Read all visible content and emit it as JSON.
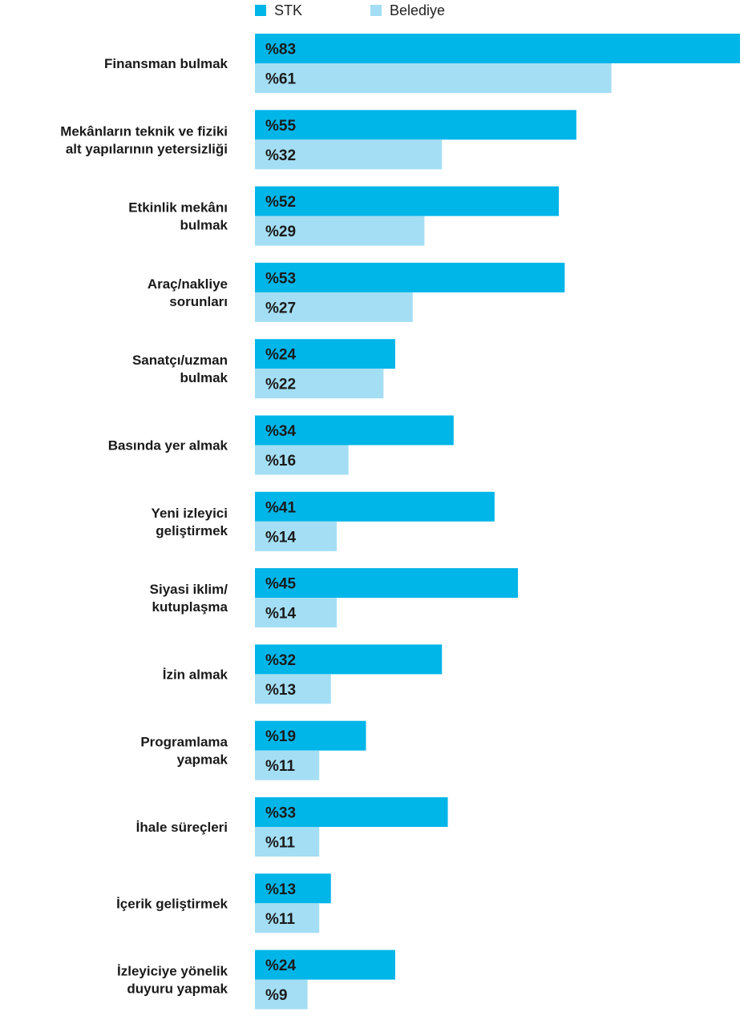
{
  "chart_data": {
    "type": "bar",
    "orientation": "horizontal",
    "categories": [
      [
        "Finansman bulmak"
      ],
      [
        "Mekânların teknik ve fiziki",
        "alt yapılarının yetersizliği"
      ],
      [
        "Etkinlik mekânı",
        "bulmak"
      ],
      [
        "Araç/nakliye",
        "sorunları"
      ],
      [
        "Sanatçı/uzman",
        "bulmak"
      ],
      [
        "Basında yer almak"
      ],
      [
        "Yeni izleyici",
        "geliştirmek"
      ],
      [
        "Siyasi iklim/",
        "kutuplaşma"
      ],
      [
        "İzin almak"
      ],
      [
        "Programlama",
        "yapmak"
      ],
      [
        "İhale süreçleri"
      ],
      [
        "İçerik geliştirmek"
      ],
      [
        "İzleyiciye yönelik",
        "duyuru yapmak"
      ]
    ],
    "series": [
      {
        "name": "STK",
        "color": "#00b5e8",
        "values": [
          83,
          55,
          52,
          53,
          24,
          34,
          41,
          45,
          32,
          19,
          33,
          13,
          24
        ],
        "labels": [
          "%83",
          "%55",
          "%52",
          "%53",
          "%24",
          "%34",
          "%41",
          "%45",
          "%32",
          "%19",
          "%33",
          "%13",
          "%24"
        ]
      },
      {
        "name": "Belediye",
        "color": "#a4def4",
        "values": [
          61,
          32,
          29,
          27,
          22,
          16,
          14,
          14,
          13,
          11,
          11,
          11,
          9
        ],
        "labels": [
          "%61",
          "%32",
          "%29",
          "%27",
          "%22",
          "%16",
          "%14",
          "%14",
          "%13",
          "%11",
          "%11",
          "%11",
          "%9"
        ]
      }
    ],
    "xlim": [
      0,
      83
    ],
    "legend": "top",
    "grid": false
  }
}
